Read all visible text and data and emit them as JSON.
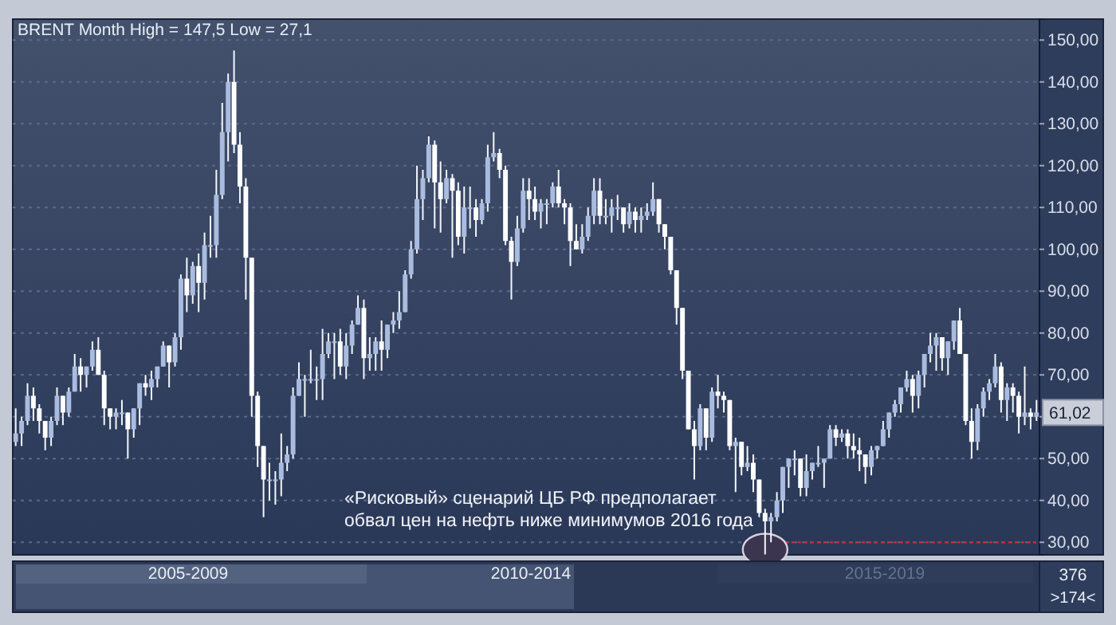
{
  "chart_data": {
    "type": "candlestick",
    "title": "BRENT Month High = 147,5 Low = 27,1",
    "categories": [
      null,
      null,
      null,
      null,
      null,
      null,
      null,
      null,
      null,
      null,
      null,
      null,
      null,
      null,
      null,
      null,
      null,
      null,
      null,
      null,
      null,
      null,
      null,
      null,
      null,
      null,
      null,
      null,
      null,
      null,
      null,
      null,
      null,
      null,
      null,
      null,
      null,
      null,
      null,
      null,
      null,
      null,
      null,
      null,
      null,
      null,
      null,
      null,
      null,
      null,
      null,
      null,
      null,
      null,
      null,
      null,
      null,
      null,
      null,
      null,
      null,
      null,
      null,
      null,
      null,
      null,
      null,
      null,
      null,
      null,
      null,
      null,
      null,
      null,
      null,
      null,
      null,
      null,
      null,
      null,
      null,
      null,
      null,
      null,
      null,
      null,
      null,
      null,
      null,
      null,
      null,
      null,
      null,
      null,
      null,
      null,
      null,
      null,
      null,
      null,
      null,
      null,
      null,
      null,
      null,
      null,
      null,
      null,
      null,
      null,
      null,
      null,
      null,
      null,
      null,
      null,
      null,
      null,
      null,
      null,
      null,
      null,
      null,
      null,
      null,
      null,
      null,
      null,
      null,
      null,
      null,
      null,
      null,
      null,
      null,
      null,
      null,
      null,
      null,
      null,
      null,
      null,
      null,
      null,
      null,
      null,
      null,
      null,
      null,
      null,
      null,
      null,
      null,
      null,
      null,
      null,
      null,
      null,
      null,
      null,
      null,
      null,
      null,
      null,
      null,
      null,
      null,
      null,
      null,
      null,
      null,
      null,
      null,
      null
    ],
    "ohlc": [
      [
        54,
        62,
        53,
        56
      ],
      [
        56,
        60,
        53,
        59
      ],
      [
        59,
        68,
        58,
        65
      ],
      [
        65,
        67,
        59,
        62
      ],
      [
        62,
        63,
        56,
        59
      ],
      [
        59,
        59,
        52,
        55
      ],
      [
        55,
        60,
        53,
        59
      ],
      [
        59,
        67,
        58,
        65
      ],
      [
        65,
        65,
        58,
        61
      ],
      [
        61,
        67,
        60,
        66
      ],
      [
        66,
        75,
        66,
        72
      ],
      [
        72,
        74,
        66,
        70
      ],
      [
        70,
        72,
        67,
        72
      ],
      [
        72,
        78,
        71,
        76
      ],
      [
        76,
        79,
        70,
        70
      ],
      [
        70,
        71,
        58,
        62
      ],
      [
        62,
        62,
        57,
        60
      ],
      [
        60,
        62,
        57,
        61
      ],
      [
        61,
        64,
        58,
        61
      ],
      [
        61,
        61,
        50,
        57
      ],
      [
        57,
        62,
        55,
        62
      ],
      [
        62,
        68,
        58,
        68
      ],
      [
        68,
        70,
        65,
        67
      ],
      [
        67,
        71,
        64,
        69
      ],
      [
        69,
        72,
        67,
        72
      ],
      [
        72,
        78,
        72,
        77
      ],
      [
        77,
        77,
        67,
        73
      ],
      [
        73,
        80,
        72,
        79
      ],
      [
        79,
        94,
        76,
        93
      ],
      [
        93,
        98,
        85,
        89
      ],
      [
        89,
        97,
        87,
        96
      ],
      [
        96,
        99,
        85,
        92
      ],
      [
        92,
        104,
        88,
        101
      ],
      [
        101,
        108,
        98,
        101
      ],
      [
        101,
        119,
        98,
        113
      ],
      [
        113,
        135,
        112,
        128
      ],
      [
        128,
        142,
        121,
        140
      ],
      [
        140,
        147.5,
        123,
        125
      ],
      [
        125,
        128,
        111,
        115
      ],
      [
        115,
        117,
        88,
        98
      ],
      [
        98,
        98,
        60,
        65
      ],
      [
        65,
        66,
        48,
        53
      ],
      [
        53,
        53,
        36,
        45
      ],
      [
        45,
        49,
        40,
        45
      ],
      [
        45,
        47,
        39,
        45
      ],
      [
        45,
        56,
        41,
        49
      ],
      [
        49,
        53,
        47,
        51
      ],
      [
        51,
        67,
        50,
        65
      ],
      [
        65,
        73,
        65,
        69
      ],
      [
        69,
        70,
        60,
        69
      ],
      [
        69,
        76,
        68,
        69
      ],
      [
        69,
        72,
        64,
        69
      ],
      [
        69,
        81,
        64,
        75
      ],
      [
        75,
        80,
        74,
        78
      ],
      [
        78,
        80,
        69,
        78
      ],
      [
        78,
        81,
        70,
        72
      ],
      [
        72,
        80,
        69,
        77
      ],
      [
        77,
        83,
        75,
        82
      ],
      [
        82,
        89,
        82,
        86
      ],
      [
        86,
        88,
        69,
        74
      ],
      [
        74,
        79,
        71,
        75
      ],
      [
        75,
        79,
        71,
        78
      ],
      [
        78,
        83,
        71,
        76
      ],
      [
        76,
        82,
        74,
        82
      ],
      [
        82,
        85,
        80,
        83
      ],
      [
        83,
        90,
        81,
        85
      ],
      [
        85,
        95,
        85,
        94
      ],
      [
        94,
        102,
        93,
        100
      ],
      [
        100,
        120,
        99,
        112
      ],
      [
        112,
        119,
        107,
        117
      ],
      [
        117,
        127,
        116,
        125
      ],
      [
        125,
        126,
        105,
        116
      ],
      [
        116,
        121,
        104,
        112
      ],
      [
        112,
        119,
        111,
        117
      ],
      [
        117,
        118,
        98,
        114
      ],
      [
        114,
        116,
        101,
        103
      ],
      [
        103,
        115,
        99,
        110
      ],
      [
        110,
        115,
        105,
        110
      ],
      [
        110,
        112,
        103,
        107
      ],
      [
        107,
        112,
        106,
        111
      ],
      [
        111,
        125,
        109,
        122
      ],
      [
        122,
        128,
        121,
        123
      ],
      [
        123,
        124,
        117,
        119
      ],
      [
        119,
        120,
        101,
        102
      ],
      [
        102,
        103,
        88,
        97
      ],
      [
        97,
        108,
        96,
        105
      ],
      [
        105,
        117,
        104,
        114
      ],
      [
        114,
        117,
        107,
        112
      ],
      [
        112,
        115,
        107,
        109
      ],
      [
        109,
        112,
        105,
        111
      ],
      [
        111,
        112,
        106,
        111
      ],
      [
        111,
        116,
        110,
        115
      ],
      [
        115,
        119,
        110,
        111
      ],
      [
        111,
        112,
        106,
        110
      ],
      [
        110,
        111,
        96,
        102
      ],
      [
        102,
        106,
        100,
        100
      ],
      [
        100,
        106,
        99,
        103
      ],
      [
        103,
        110,
        102,
        108
      ],
      [
        108,
        117,
        106,
        114
      ],
      [
        114,
        117,
        106,
        108
      ],
      [
        108,
        112,
        106,
        108
      ],
      [
        108,
        112,
        104,
        110
      ],
      [
        110,
        113,
        107,
        110
      ],
      [
        110,
        110,
        104,
        106
      ],
      [
        106,
        111,
        105,
        109
      ],
      [
        109,
        110,
        104,
        107
      ],
      [
        107,
        110,
        104,
        108
      ],
      [
        108,
        111,
        107,
        109
      ],
      [
        109,
        116,
        108,
        112
      ],
      [
        112,
        112,
        104,
        106
      ],
      [
        106,
        106,
        100,
        103
      ],
      [
        103,
        103,
        94,
        95
      ],
      [
        95,
        95,
        82,
        86
      ],
      [
        86,
        86,
        69,
        71
      ],
      [
        71,
        71,
        57,
        57
      ],
      [
        57,
        59,
        45,
        53
      ],
      [
        53,
        63,
        52,
        62
      ],
      [
        62,
        62,
        52,
        55
      ],
      [
        55,
        67,
        54,
        66
      ],
      [
        66,
        70,
        62,
        65
      ],
      [
        65,
        66,
        61,
        64
      ],
      [
        64,
        64,
        52,
        53
      ],
      [
        53,
        55,
        42,
        54
      ],
      [
        54,
        54,
        46,
        48
      ],
      [
        48,
        53,
        47,
        49
      ],
      [
        49,
        51,
        42,
        45
      ],
      [
        45,
        45,
        36,
        37
      ],
      [
        37,
        38,
        27.1,
        35
      ],
      [
        35,
        37,
        30,
        36
      ],
      [
        36,
        42,
        35,
        40
      ],
      [
        40,
        48,
        37,
        48
      ],
      [
        48,
        50,
        43,
        50
      ],
      [
        50,
        52,
        46,
        50
      ],
      [
        50,
        50,
        41,
        43
      ],
      [
        43,
        51,
        41,
        47
      ],
      [
        47,
        49,
        45,
        49
      ],
      [
        49,
        53,
        48,
        49
      ],
      [
        49,
        50,
        43,
        50
      ],
      [
        50,
        58,
        50,
        57
      ],
      [
        57,
        58,
        53,
        55
      ],
      [
        55,
        57,
        54,
        56
      ],
      [
        56,
        57,
        50,
        53
      ],
      [
        53,
        56,
        50,
        52
      ],
      [
        52,
        55,
        47,
        51
      ],
      [
        51,
        51,
        44,
        48
      ],
      [
        48,
        53,
        46,
        52
      ],
      [
        52,
        53,
        50,
        53
      ],
      [
        53,
        59,
        53,
        57
      ],
      [
        57,
        61,
        55,
        61
      ],
      [
        61,
        64,
        60,
        63
      ],
      [
        63,
        67,
        61,
        67
      ],
      [
        67,
        71,
        66,
        69
      ],
      [
        69,
        70,
        61,
        65
      ],
      [
        65,
        71,
        62,
        70
      ],
      [
        70,
        75,
        67,
        75
      ],
      [
        75,
        80,
        73,
        77
      ],
      [
        77,
        80,
        71,
        79
      ],
      [
        79,
        79,
        71,
        74
      ],
      [
        74,
        78,
        70,
        78
      ],
      [
        78,
        83,
        76,
        83
      ],
      [
        83,
        86,
        75,
        75
      ],
      [
        75,
        75,
        58,
        59
      ],
      [
        59,
        62,
        50,
        54
      ],
      [
        54,
        63,
        52,
        62
      ],
      [
        62,
        67,
        60,
        66
      ],
      [
        66,
        69,
        64,
        68
      ],
      [
        68,
        75,
        67,
        72
      ],
      [
        72,
        73,
        61,
        64
      ],
      [
        64,
        68,
        59,
        67
      ],
      [
        67,
        68,
        61,
        65
      ],
      [
        65,
        66,
        56,
        60
      ],
      [
        60,
        72,
        58,
        61
      ],
      [
        61,
        62,
        57,
        60
      ],
      [
        60,
        64,
        59,
        61.02
      ]
    ],
    "ylim": [
      27,
      155
    ],
    "yticks": [
      {
        "value": 30,
        "label": "30,00"
      },
      {
        "value": 40,
        "label": "40,00"
      },
      {
        "value": 50,
        "label": "50,00"
      },
      {
        "value": 60,
        "label": null
      },
      {
        "value": 70,
        "label": "70,00"
      },
      {
        "value": 80,
        "label": "80,00"
      },
      {
        "value": 90,
        "label": "90,00"
      },
      {
        "value": 100,
        "label": "100,00"
      },
      {
        "value": 110,
        "label": "110,00"
      },
      {
        "value": 120,
        "label": "120,00"
      },
      {
        "value": 130,
        "label": "130,00"
      },
      {
        "value": 140,
        "label": "140,00"
      },
      {
        "value": 150,
        "label": "150,00"
      }
    ],
    "grid": "y",
    "ref_lines": [
      {
        "axis": "y",
        "value": 30,
        "color": "#c8283c",
        "line_style": "dotted"
      }
    ],
    "annotations": [
      "«Рисковый» сценарий ЦБ РФ предполагает\nобвал цен на нефть ниже минимумов 2016 года",
      "2005-2009",
      "2010-2014",
      "2015-2019",
      "376",
      ">174<",
      "61,02"
    ]
  }
}
